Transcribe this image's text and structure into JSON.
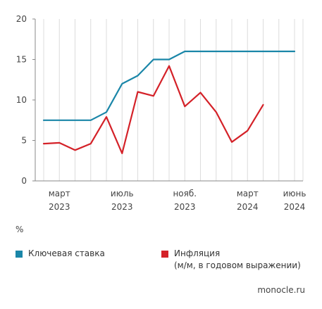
{
  "chart_data": {
    "type": "line",
    "unit": "%",
    "ylim": [
      0,
      20
    ],
    "yticks": [
      0,
      5,
      10,
      15,
      20
    ],
    "xlim": [
      0,
      16
    ],
    "x_tick_labels": [
      {
        "x": 1,
        "line1": "март",
        "line2": "2023"
      },
      {
        "x": 5,
        "line1": "июль",
        "line2": "2023"
      },
      {
        "x": 9,
        "line1": "нояб.",
        "line2": "2023"
      },
      {
        "x": 13,
        "line1": "март",
        "line2": "2024"
      },
      {
        "x": 16,
        "line1": "июнь",
        "line2": "2024"
      }
    ],
    "grid": "vertical",
    "series": [
      {
        "name": "Ключевая ставка",
        "color": "#1a86a8",
        "x": [
          0,
          1,
          2,
          3,
          4,
          5,
          6,
          7,
          8,
          9,
          10,
          11,
          12,
          13,
          14,
          15,
          16
        ],
        "values": [
          7.5,
          7.5,
          7.5,
          7.5,
          8.5,
          12,
          13,
          15,
          15,
          16,
          16,
          16,
          16,
          16,
          16,
          16,
          16
        ]
      },
      {
        "name": "Инфляция",
        "name_line2": "(м/м, в годовом выражении)",
        "color": "#d42128",
        "x": [
          0,
          1,
          2,
          3,
          4,
          5,
          6,
          7,
          8,
          9,
          10,
          11,
          12,
          13,
          14
        ],
        "values": [
          4.6,
          4.7,
          3.8,
          4.6,
          7.9,
          3.4,
          11,
          10.5,
          14.2,
          9.2,
          10.9,
          8.5,
          4.8,
          6.2,
          9.4
        ]
      }
    ]
  },
  "legend": {
    "unit_label": "%",
    "key_rate": "Ключевая ставка",
    "inflation_line1": "Инфляция",
    "inflation_line2": "(м/м, в годовом выражении)"
  },
  "source": "monocle.ru"
}
